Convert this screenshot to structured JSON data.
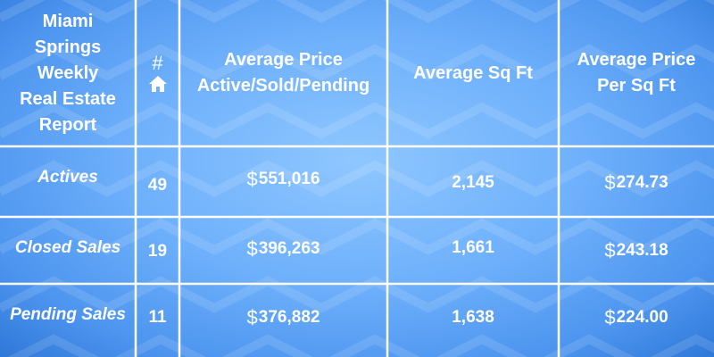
{
  "header": {
    "title": "Miami Springs Weekly Real Estate Report",
    "title_lines": [
      "Miami",
      "Springs",
      "Weekly",
      "Real Estate",
      "Report"
    ],
    "count_symbol": "#",
    "count_icon": "house-icon",
    "col_avg_price_lines": [
      "Average Price",
      "Active/Sold/Pending"
    ],
    "col_avg_sqft": "Average Sq Ft",
    "col_price_per_sqft_lines": [
      "Average Price",
      "Per Sq Ft"
    ]
  },
  "rows": [
    {
      "label": "Actives",
      "count": "49",
      "currency": "$",
      "avg_price": "551,016",
      "avg_sqft": "2,145",
      "price_per_sqft": "274.73"
    },
    {
      "label": "Closed Sales",
      "count": "19",
      "currency": "$",
      "avg_price": "396,263",
      "avg_sqft": "1,661",
      "price_per_sqft": "243.18"
    },
    {
      "label": "Pending Sales",
      "count": "11",
      "currency": "$",
      "avg_price": "376,882",
      "avg_sqft": "1,638",
      "price_per_sqft": "224.00"
    }
  ],
  "colors": {
    "background_center": "#8fc7ff",
    "background_edge": "#2f78d8",
    "grid_lines": "#ffffff",
    "text": "#ffffff"
  }
}
